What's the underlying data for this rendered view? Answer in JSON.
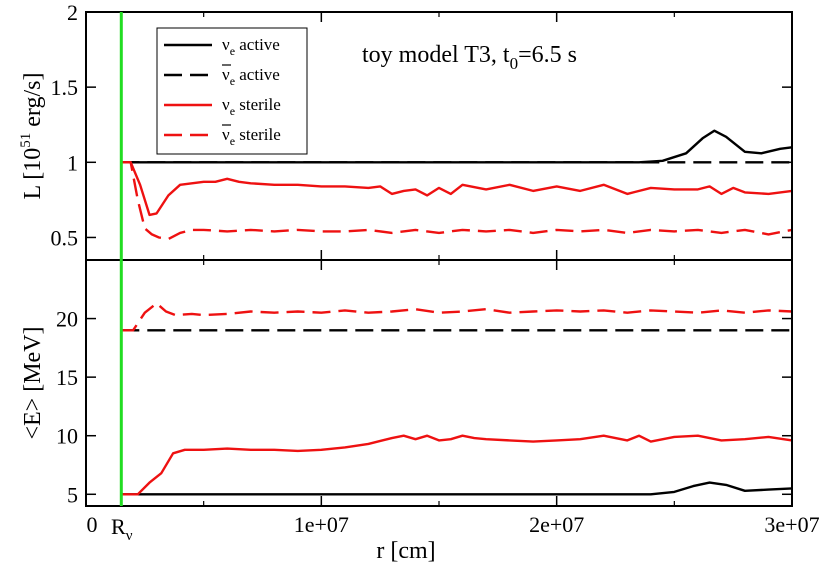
{
  "chart_data": [
    {
      "type": "line",
      "panel": "top",
      "ylabel": {
        "main": "L [10",
        "sup": "51",
        "tail": " erg/s]"
      },
      "ylim": [
        0.35,
        2.0
      ],
      "yticks": [
        "0.5",
        "1",
        "1.5",
        "2"
      ],
      "xlim": [
        0,
        30000000
      ],
      "grid": false,
      "annotation": {
        "main": "toy model T3, t",
        "sub": "0",
        "tail": "=6.5 s"
      },
      "legend": {
        "placement": "top-left",
        "entries": [
          {
            "label_sym": "ν",
            "label_sub": "e",
            "label_text": " active",
            "bar": false
          },
          {
            "label_sym": "ν",
            "label_sub": "e",
            "label_text": " active",
            "bar": true
          },
          {
            "label_sym": "ν",
            "label_sub": "e",
            "label_text": " sterile",
            "bar": false
          },
          {
            "label_sym": "ν",
            "label_sub": "e",
            "label_text": " sterile",
            "bar": true
          }
        ]
      },
      "series": [
        {
          "key": "nue_active",
          "color": "#000000",
          "dash": "solid",
          "x": [
            1500000,
            5000000,
            10000000,
            15000000,
            20000000,
            22000000,
            23500000,
            24500000,
            25500000,
            26200000,
            26700000,
            27200000,
            28000000,
            28700000,
            29500000,
            30000000
          ],
          "y": [
            1.0,
            1.0,
            1.0,
            1.0,
            1.0,
            1.0,
            1.0,
            1.01,
            1.06,
            1.16,
            1.21,
            1.17,
            1.07,
            1.06,
            1.09,
            1.1
          ]
        },
        {
          "key": "nuebar_active",
          "color": "#000000",
          "dash": "dashed",
          "x": [
            1500000,
            30000000
          ],
          "y": [
            1.0,
            1.0
          ]
        },
        {
          "key": "nue_sterile",
          "color": "#ee1111",
          "dash": "solid",
          "x": [
            1500000,
            1900000,
            2300000,
            2700000,
            3000000,
            3500000,
            4000000,
            4500000,
            5000000,
            5500000,
            6000000,
            6500000,
            7000000,
            8000000,
            9000000,
            10000000,
            11000000,
            12000000,
            12500000,
            13000000,
            13500000,
            14000000,
            14500000,
            15000000,
            15500000,
            16000000,
            17000000,
            18000000,
            19000000,
            20000000,
            21000000,
            22000000,
            23000000,
            24000000,
            25000000,
            26000000,
            26500000,
            27000000,
            27500000,
            28000000,
            29000000,
            30000000
          ],
          "y": [
            1.0,
            1.0,
            0.85,
            0.65,
            0.66,
            0.78,
            0.85,
            0.86,
            0.87,
            0.87,
            0.89,
            0.87,
            0.86,
            0.85,
            0.85,
            0.84,
            0.84,
            0.83,
            0.84,
            0.79,
            0.81,
            0.82,
            0.78,
            0.83,
            0.79,
            0.85,
            0.82,
            0.85,
            0.81,
            0.84,
            0.81,
            0.85,
            0.79,
            0.83,
            0.82,
            0.82,
            0.84,
            0.79,
            0.83,
            0.8,
            0.79,
            0.81
          ]
        },
        {
          "key": "nuebar_sterile",
          "color": "#ee1111",
          "dash": "dashed",
          "x": [
            1500000,
            1900000,
            2200000,
            2500000,
            2800000,
            3100000,
            3500000,
            4000000,
            4500000,
            5000000,
            6000000,
            7000000,
            8000000,
            9000000,
            10000000,
            11000000,
            12000000,
            13000000,
            14000000,
            15000000,
            16000000,
            17000000,
            18000000,
            19000000,
            20000000,
            21000000,
            22000000,
            23000000,
            24000000,
            25000000,
            26000000,
            27000000,
            28000000,
            29000000,
            30000000
          ],
          "y": [
            1.0,
            1.0,
            0.75,
            0.56,
            0.52,
            0.5,
            0.49,
            0.53,
            0.55,
            0.55,
            0.54,
            0.55,
            0.54,
            0.55,
            0.54,
            0.54,
            0.55,
            0.53,
            0.55,
            0.53,
            0.55,
            0.54,
            0.55,
            0.53,
            0.55,
            0.54,
            0.55,
            0.53,
            0.55,
            0.54,
            0.55,
            0.53,
            0.55,
            0.52,
            0.55
          ]
        }
      ]
    },
    {
      "type": "line",
      "panel": "bottom",
      "ylabel": "<E> [MeV]",
      "xlabel": "r [cm]",
      "ylim": [
        4,
        25
      ],
      "yticks": [
        "5",
        "10",
        "15",
        "20"
      ],
      "xlim": [
        0,
        30000000
      ],
      "xticks": [
        "0",
        "1e+07",
        "2e+07",
        "3e+07"
      ],
      "grid": false,
      "annotation_rnu": {
        "main": "R",
        "sub": "ν"
      },
      "rnu_marker": {
        "x": 1500000,
        "color": "#22dd22"
      },
      "series": [
        {
          "key": "nue_active",
          "color": "#000000",
          "dash": "solid",
          "x": [
            1500000,
            10000000,
            20000000,
            24000000,
            25000000,
            25800000,
            26500000,
            27200000,
            28000000,
            29000000,
            30000000
          ],
          "y": [
            5.0,
            5.0,
            5.0,
            5.0,
            5.2,
            5.7,
            6.0,
            5.8,
            5.3,
            5.4,
            5.5
          ]
        },
        {
          "key": "nuebar_active",
          "color": "#000000",
          "dash": "dashed",
          "x": [
            1500000,
            30000000
          ],
          "y": [
            19.0,
            19.0
          ]
        },
        {
          "key": "nue_sterile",
          "color": "#ee1111",
          "dash": "solid",
          "x": [
            1500000,
            2200000,
            2700000,
            3200000,
            3700000,
            4200000,
            5000000,
            6000000,
            7000000,
            8000000,
            9000000,
            10000000,
            11000000,
            12000000,
            13000000,
            13500000,
            14000000,
            14500000,
            15000000,
            15500000,
            16000000,
            16500000,
            17000000,
            18000000,
            19000000,
            20000000,
            21000000,
            22000000,
            23000000,
            23500000,
            24000000,
            25000000,
            26000000,
            27000000,
            28000000,
            29000000,
            30000000
          ],
          "y": [
            5.0,
            5.0,
            6.0,
            6.8,
            8.5,
            8.8,
            8.8,
            8.9,
            8.8,
            8.8,
            8.7,
            8.8,
            9.0,
            9.3,
            9.8,
            10.0,
            9.7,
            10.0,
            9.6,
            9.7,
            10.0,
            9.8,
            9.7,
            9.6,
            9.5,
            9.6,
            9.7,
            10.0,
            9.6,
            10.0,
            9.5,
            9.9,
            10.0,
            9.6,
            9.7,
            9.9,
            9.6
          ]
        },
        {
          "key": "nuebar_sterile",
          "color": "#ee1111",
          "dash": "dashed",
          "x": [
            1500000,
            2000000,
            2500000,
            3000000,
            3400000,
            3800000,
            4500000,
            5000000,
            6000000,
            7000000,
            8000000,
            9000000,
            10000000,
            11000000,
            12000000,
            13000000,
            14000000,
            15000000,
            16000000,
            17000000,
            18000000,
            19000000,
            20000000,
            21000000,
            22000000,
            23000000,
            24000000,
            25000000,
            26000000,
            27000000,
            28000000,
            29000000,
            30000000
          ],
          "y": [
            19.0,
            19.0,
            20.5,
            21.3,
            20.6,
            20.3,
            20.4,
            20.3,
            20.4,
            20.6,
            20.5,
            20.6,
            20.5,
            20.7,
            20.5,
            20.6,
            20.8,
            20.5,
            20.6,
            20.8,
            20.5,
            20.6,
            20.7,
            20.6,
            20.7,
            20.5,
            20.7,
            20.6,
            20.5,
            20.7,
            20.5,
            20.7,
            20.6
          ]
        }
      ]
    }
  ]
}
